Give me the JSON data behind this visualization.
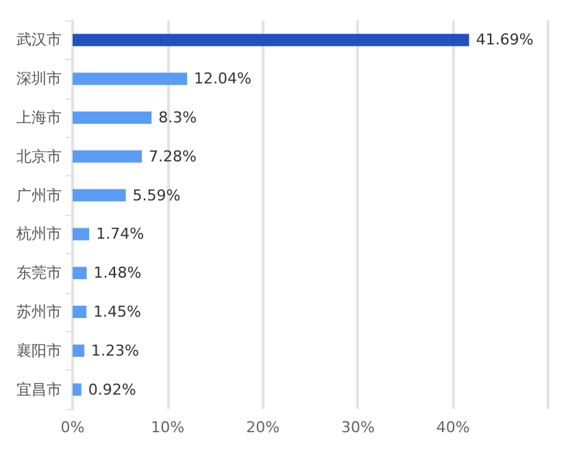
{
  "chart_data": {
    "type": "bar",
    "orientation": "horizontal",
    "categories": [
      "武汉市",
      "深圳市",
      "上海市",
      "北京市",
      "广州市",
      "杭州市",
      "东莞市",
      "苏州市",
      "襄阳市",
      "宜昌市"
    ],
    "values": [
      41.69,
      12.04,
      8.3,
      7.28,
      5.59,
      1.74,
      1.48,
      1.45,
      1.23,
      0.92
    ],
    "colors": [
      "#2150c0",
      "#5b9cf5",
      "#5b9cf5",
      "#5b9cf5",
      "#5b9cf5",
      "#5b9cf5",
      "#5b9cf5",
      "#5b9cf5",
      "#5b9cf5",
      "#5b9cf5"
    ],
    "value_labels": [
      "41.69%",
      "12.04%",
      "8.3%",
      "7.28%",
      "5.59%",
      "1.74%",
      "1.48%",
      "1.45%",
      "1.23%",
      "0.92%"
    ],
    "xlim": [
      0,
      50
    ],
    "xticks": [
      {
        "value": 0,
        "label": "0%"
      },
      {
        "value": 10,
        "label": "10%"
      },
      {
        "value": 20,
        "label": "20%"
      },
      {
        "value": 30,
        "label": "30%"
      },
      {
        "value": 40,
        "label": "40%"
      },
      {
        "value": 50,
        "label": null
      }
    ],
    "grid": "x"
  }
}
